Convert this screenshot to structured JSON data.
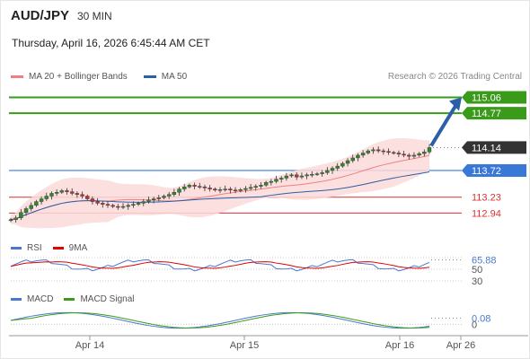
{
  "header": {
    "symbol": "AUD/JPY",
    "timeframe": "30 MIN",
    "datetime": "Thursday, April 16, 2026 6:45:44 AM CET"
  },
  "legend": {
    "ma20_label": "MA 20 + Bollinger Bands",
    "ma50_label": "MA 50",
    "ma20_color": "#f08080",
    "ma50_color": "#2b5fa8",
    "copyright": "Research © 2026 Trading Central"
  },
  "rsi_legend": {
    "rsi_label": "RSI",
    "ma_label": "9MA",
    "rsi_color": "#4a78d0",
    "ma_color": "#e00000"
  },
  "macd_legend": {
    "macd_label": "MACD",
    "signal_label": "MACD Signal",
    "macd_color": "#4a78d0",
    "signal_color": "#3a9a1a"
  },
  "chart_data": [
    {
      "type": "candlestick",
      "title": "AUD/JPY 30 MIN",
      "ylim": [
        112.6,
        115.2
      ],
      "price_levels": [
        {
          "label": "115.06",
          "value": 115.06,
          "kind": "target",
          "color": "#3a9a1a"
        },
        {
          "label": "114.77",
          "value": 114.77,
          "kind": "target",
          "color": "#3a9a1a"
        },
        {
          "label": "114.14",
          "value": 114.14,
          "kind": "last",
          "color": "#333333"
        },
        {
          "label": "113.72",
          "value": 113.72,
          "kind": "pivot",
          "color": "#3a78d8"
        },
        {
          "label": "113.23",
          "value": 113.23,
          "kind": "support",
          "color": "#e03030"
        },
        {
          "label": "112.94",
          "value": 112.94,
          "kind": "support",
          "color": "#e03030"
        }
      ],
      "trend_arrow": "up",
      "x_ticks": [
        "Apr 14",
        "Apr 15",
        "Apr 16",
        "Apr 26"
      ],
      "close_series": [
        112.82,
        112.85,
        112.95,
        113.02,
        113.08,
        113.15,
        113.2,
        113.25,
        113.3,
        113.32,
        113.35,
        113.33,
        113.3,
        113.28,
        113.25,
        113.2,
        113.15,
        113.12,
        113.1,
        113.08,
        113.06,
        113.05,
        113.06,
        113.08,
        113.1,
        113.12,
        113.15,
        113.18,
        113.2,
        113.22,
        113.25,
        113.28,
        113.32,
        113.38,
        113.42,
        113.45,
        113.43,
        113.42,
        113.4,
        113.38,
        113.36,
        113.37,
        113.38,
        113.36,
        113.35,
        113.37,
        113.39,
        113.41,
        113.43,
        113.45,
        113.5,
        113.52,
        113.56,
        113.58,
        113.62,
        113.64,
        113.6,
        113.62,
        113.64,
        113.65,
        113.66,
        113.68,
        113.72,
        113.76,
        113.8,
        113.85,
        113.9,
        113.95,
        114.0,
        114.04,
        114.08,
        114.1,
        114.08,
        114.07,
        114.05,
        114.04,
        114.02,
        114.0,
        113.98,
        114.0,
        114.03,
        114.06,
        114.14
      ]
    },
    {
      "type": "line",
      "title": "RSI",
      "ylim": [
        30,
        70
      ],
      "yticks": [
        30,
        50
      ],
      "last_value_label": "65.88",
      "last_value": 65.88
    },
    {
      "type": "line",
      "title": "MACD",
      "yticks": [
        0
      ],
      "last_value_label": "0.08",
      "last_value": 0.08
    }
  ]
}
